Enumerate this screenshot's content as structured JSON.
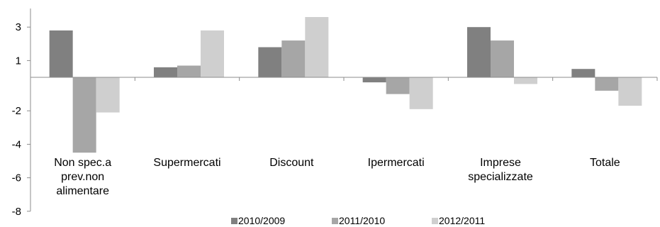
{
  "chart_data": {
    "type": "bar",
    "categories": [
      [
        "Non spec.a",
        "prev.non",
        "alimentare"
      ],
      [
        "Supermercati"
      ],
      [
        "Discount"
      ],
      [
        "Ipermercati"
      ],
      [
        "Imprese",
        "specializzate"
      ],
      [
        "Totale"
      ]
    ],
    "series": [
      {
        "name": "2010/2009",
        "color": "#808080",
        "values": [
          2.8,
          0.6,
          1.8,
          -0.3,
          3.0,
          0.5
        ]
      },
      {
        "name": "2011/2010",
        "color": "#a6a6a6",
        "values": [
          -4.5,
          0.7,
          2.2,
          -1.0,
          2.2,
          -0.8
        ]
      },
      {
        "name": "2012/2011",
        "color": "#cfcfcf",
        "values": [
          -2.1,
          2.8,
          3.6,
          -1.9,
          -0.4,
          -1.7
        ]
      }
    ],
    "yticks": [
      3,
      1,
      -2,
      -4,
      -6,
      -8
    ],
    "ylim": [
      -8,
      4
    ],
    "legend_position": "bottom",
    "grid": false
  }
}
